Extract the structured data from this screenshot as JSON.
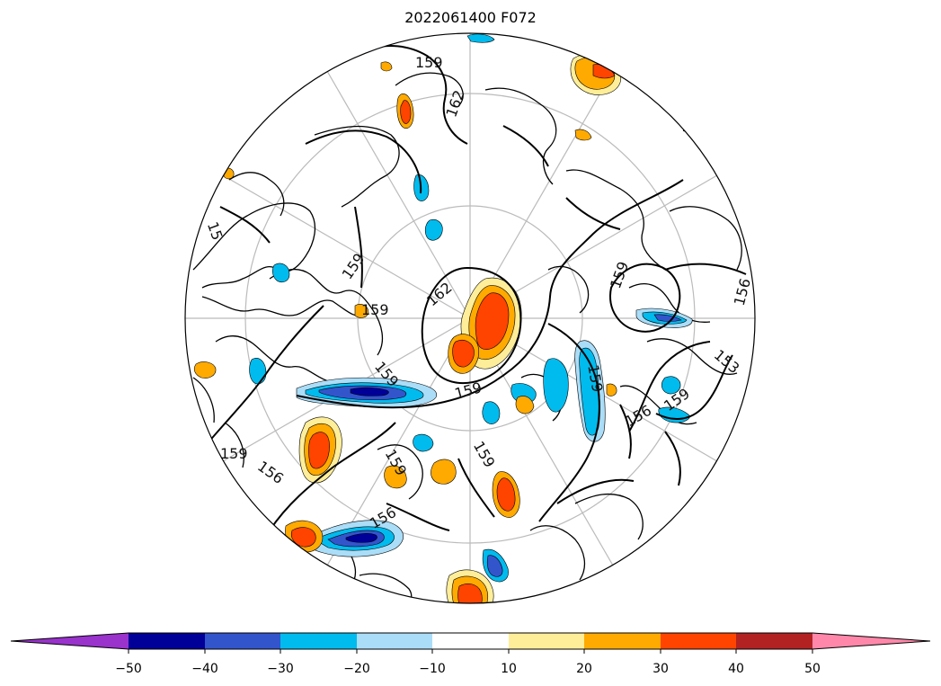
{
  "title": "2022061400 F072",
  "contour_labels": [
    "159",
    "162",
    "159",
    "162",
    "159",
    "159",
    "159",
    "159",
    "156",
    "153",
    "156",
    "159",
    "159",
    "159",
    "159",
    "156",
    "159",
    "156",
    "15"
  ],
  "colorbar": {
    "colors": [
      "#9933cc",
      "#000099",
      "#3355cc",
      "#00bbee",
      "#aaddf8",
      "#ffffff",
      "#ffee99",
      "#ffaa00",
      "#ff4400",
      "#b22222",
      "#ff88aa"
    ],
    "ticks": [
      "−50",
      "−40",
      "−30",
      "−20",
      "−10",
      "10",
      "20",
      "30",
      "40",
      "50"
    ],
    "extend": "both"
  },
  "icons": {
    "map_projection": "north-polar-stereographic"
  }
}
